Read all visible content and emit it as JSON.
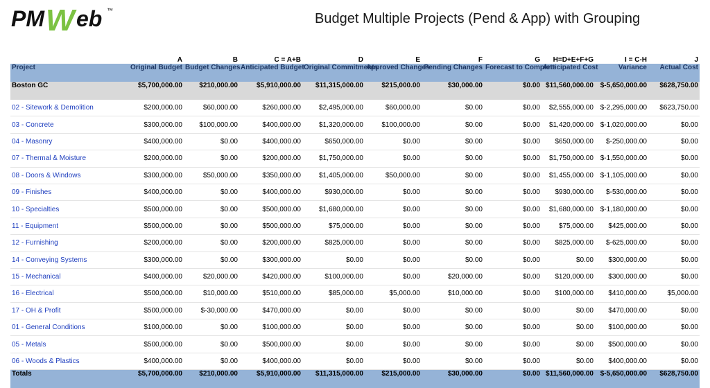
{
  "logo": {
    "text": "PMWeb",
    "tm": "™",
    "colors": {
      "pm": "#111111",
      "w": "#7cc242"
    }
  },
  "title": "Budget Multiple Projects (Pend & App) with Grouping",
  "column_letters": [
    "",
    "A",
    "B",
    "C = A+B",
    "D",
    "E",
    "F",
    "G",
    "H=D+E+F+G",
    "I = C-H",
    "J"
  ],
  "columns": [
    "Project",
    "Original Budget",
    "Budget Changes",
    "Anticipated Budget",
    "Original Commitments",
    "Approved Changes",
    "Pending Changes",
    "Forecast to Complete",
    "Anticipated Cost",
    "Variance",
    "Actual Cost"
  ],
  "group": {
    "label": "Boston GC",
    "values": [
      "$5,700,000.00",
      "$210,000.00",
      "$5,910,000.00",
      "$11,315,000.00",
      "$215,000.00",
      "$30,000.00",
      "$0.00",
      "$11,560,000.00",
      "$-5,650,000.00",
      "$628,750.00"
    ]
  },
  "rows": [
    {
      "label": "02 - Sitework & Demolition",
      "values": [
        "$200,000.00",
        "$60,000.00",
        "$260,000.00",
        "$2,495,000.00",
        "$60,000.00",
        "$0.00",
        "$0.00",
        "$2,555,000.00",
        "$-2,295,000.00",
        "$623,750.00"
      ]
    },
    {
      "label": "03 - Concrete",
      "values": [
        "$300,000.00",
        "$100,000.00",
        "$400,000.00",
        "$1,320,000.00",
        "$100,000.00",
        "$0.00",
        "$0.00",
        "$1,420,000.00",
        "$-1,020,000.00",
        "$0.00"
      ]
    },
    {
      "label": "04 - Masonry",
      "values": [
        "$400,000.00",
        "$0.00",
        "$400,000.00",
        "$650,000.00",
        "$0.00",
        "$0.00",
        "$0.00",
        "$650,000.00",
        "$-250,000.00",
        "$0.00"
      ]
    },
    {
      "label": "07 - Thermal & Moisture",
      "values": [
        "$200,000.00",
        "$0.00",
        "$200,000.00",
        "$1,750,000.00",
        "$0.00",
        "$0.00",
        "$0.00",
        "$1,750,000.00",
        "$-1,550,000.00",
        "$0.00"
      ]
    },
    {
      "label": "08 - Doors & Windows",
      "values": [
        "$300,000.00",
        "$50,000.00",
        "$350,000.00",
        "$1,405,000.00",
        "$50,000.00",
        "$0.00",
        "$0.00",
        "$1,455,000.00",
        "$-1,105,000.00",
        "$0.00"
      ]
    },
    {
      "label": "09 - Finishes",
      "values": [
        "$400,000.00",
        "$0.00",
        "$400,000.00",
        "$930,000.00",
        "$0.00",
        "$0.00",
        "$0.00",
        "$930,000.00",
        "$-530,000.00",
        "$0.00"
      ]
    },
    {
      "label": "10 - Specialties",
      "values": [
        "$500,000.00",
        "$0.00",
        "$500,000.00",
        "$1,680,000.00",
        "$0.00",
        "$0.00",
        "$0.00",
        "$1,680,000.00",
        "$-1,180,000.00",
        "$0.00"
      ]
    },
    {
      "label": "11 - Equipment",
      "values": [
        "$500,000.00",
        "$0.00",
        "$500,000.00",
        "$75,000.00",
        "$0.00",
        "$0.00",
        "$0.00",
        "$75,000.00",
        "$425,000.00",
        "$0.00"
      ]
    },
    {
      "label": "12 - Furnishing",
      "values": [
        "$200,000.00",
        "$0.00",
        "$200,000.00",
        "$825,000.00",
        "$0.00",
        "$0.00",
        "$0.00",
        "$825,000.00",
        "$-625,000.00",
        "$0.00"
      ]
    },
    {
      "label": "14 - Conveying Systems",
      "values": [
        "$300,000.00",
        "$0.00",
        "$300,000.00",
        "$0.00",
        "$0.00",
        "$0.00",
        "$0.00",
        "$0.00",
        "$300,000.00",
        "$0.00"
      ]
    },
    {
      "label": "15 - Mechanical",
      "values": [
        "$400,000.00",
        "$20,000.00",
        "$420,000.00",
        "$100,000.00",
        "$0.00",
        "$20,000.00",
        "$0.00",
        "$120,000.00",
        "$300,000.00",
        "$0.00"
      ]
    },
    {
      "label": "16 - Electrical",
      "values": [
        "$500,000.00",
        "$10,000.00",
        "$510,000.00",
        "$85,000.00",
        "$5,000.00",
        "$10,000.00",
        "$0.00",
        "$100,000.00",
        "$410,000.00",
        "$5,000.00"
      ]
    },
    {
      "label": "17 - OH & Profit",
      "values": [
        "$500,000.00",
        "$-30,000.00",
        "$470,000.00",
        "$0.00",
        "$0.00",
        "$0.00",
        "$0.00",
        "$0.00",
        "$470,000.00",
        "$0.00"
      ]
    },
    {
      "label": "01 - General Conditions",
      "values": [
        "$100,000.00",
        "$0.00",
        "$100,000.00",
        "$0.00",
        "$0.00",
        "$0.00",
        "$0.00",
        "$0.00",
        "$100,000.00",
        "$0.00"
      ]
    },
    {
      "label": "05 - Metals",
      "values": [
        "$500,000.00",
        "$0.00",
        "$500,000.00",
        "$0.00",
        "$0.00",
        "$0.00",
        "$0.00",
        "$0.00",
        "$500,000.00",
        "$0.00"
      ]
    },
    {
      "label": "06 - Woods & Plastics",
      "values": [
        "$400,000.00",
        "$0.00",
        "$400,000.00",
        "$0.00",
        "$0.00",
        "$0.00",
        "$0.00",
        "$0.00",
        "$400,000.00",
        "$0.00"
      ]
    }
  ],
  "totals": {
    "label": "Totals",
    "values": [
      "$5,700,000.00",
      "$210,000.00",
      "$5,910,000.00",
      "$11,315,000.00",
      "$215,000.00",
      "$30,000.00",
      "$0.00",
      "$11,560,000.00",
      "$-5,650,000.00",
      "$628,750.00"
    ]
  },
  "colors": {
    "header_bg": "#95b3d7",
    "header_text": "#1f3864",
    "group_bg": "#d9d9d9",
    "link": "#1f3fbf"
  }
}
